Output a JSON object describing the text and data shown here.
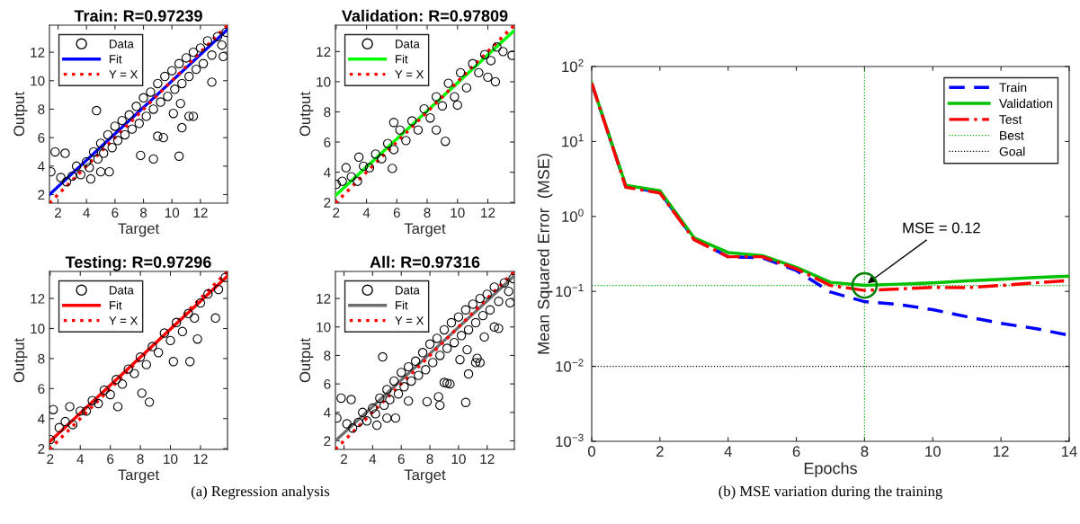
{
  "chart_data": [
    {
      "type": "scatter",
      "title": "Train: R=0.97239",
      "xlabel": "Target",
      "ylabel": "Output",
      "xlim": [
        1.4,
        13.9
      ],
      "ylim": [
        1.4,
        13.9
      ],
      "xticks": [
        2,
        4,
        6,
        8,
        10,
        12
      ],
      "yticks": [
        2,
        4,
        6,
        8,
        10,
        12
      ],
      "legend": "top left",
      "series": [
        {
          "name": "Data",
          "type": "scatter",
          "marker": "circle",
          "color": "#000000",
          "x": [
            1.5,
            1.8,
            2.5,
            4.7,
            4.3,
            5.0,
            5.6,
            7.8,
            8.7,
            10.5,
            9.0,
            9.4,
            10.7,
            10.1,
            11.2,
            11.5,
            10.6,
            12.8,
            13.6,
            2.2,
            2.6,
            3.0,
            3.3,
            3.6,
            4.0,
            4.2,
            4.5,
            4.8,
            5.0,
            5.2,
            5.5,
            5.8,
            6.0,
            6.2,
            6.5,
            6.7,
            7.0,
            7.2,
            7.5,
            7.7,
            8.0,
            8.2,
            8.5,
            8.7,
            9.0,
            9.2,
            9.5,
            9.7,
            10.0,
            10.2,
            10.5,
            10.7,
            11.0,
            11.2,
            11.5,
            11.7,
            12.0,
            12.2,
            12.5,
            12.8,
            13.2,
            13.5,
            13.8
          ],
          "values": [
            3.6,
            5.0,
            4.9,
            7.9,
            3.1,
            3.6,
            3.6,
            4.75,
            4.5,
            4.7,
            6.1,
            6.0,
            6.7,
            7.7,
            7.5,
            7.5,
            8.4,
            9.9,
            11.7,
            3.2,
            2.9,
            3.3,
            4.0,
            3.4,
            4.3,
            3.9,
            5.0,
            4.5,
            5.6,
            4.9,
            6.2,
            5.3,
            6.8,
            5.8,
            7.2,
            6.2,
            7.6,
            6.6,
            8.2,
            7.0,
            8.8,
            7.5,
            9.2,
            8.0,
            9.8,
            8.5,
            10.3,
            8.9,
            10.7,
            9.4,
            11.2,
            9.8,
            11.6,
            10.3,
            12.0,
            10.8,
            12.3,
            11.2,
            12.8,
            11.8,
            13.1,
            12.5,
            13.4
          ]
        },
        {
          "name": "Fit",
          "type": "line",
          "color": "#0000ff",
          "x": [
            1.4,
            13.9
          ],
          "values": [
            2.0,
            13.6
          ]
        },
        {
          "name": "Y = X",
          "type": "line",
          "line_style": "dotted",
          "color": "#ff0000",
          "x": [
            1.4,
            13.9
          ],
          "values": [
            1.4,
            13.9
          ]
        }
      ]
    },
    {
      "type": "scatter",
      "title": "Validation: R=0.97809",
      "xlabel": "Target",
      "ylabel": "Output",
      "xlim": [
        1.95,
        13.75
      ],
      "ylim": [
        1.95,
        13.75
      ],
      "xticks": [
        2,
        4,
        6,
        8,
        10,
        12
      ],
      "yticks": [
        2,
        4,
        6,
        8,
        10,
        12
      ],
      "legend": "top left",
      "series": [
        {
          "name": "Data",
          "type": "scatter",
          "marker": "circle",
          "color": "#000000",
          "x": [
            9.2,
            8.6,
            12.5,
            12.0,
            13.6,
            2.0,
            2.65,
            5.7,
            5.8,
            3.5,
            10.0,
            2.4,
            3.0,
            3.4,
            3.8,
            4.2,
            4.6,
            5.0,
            5.4,
            5.8,
            6.2,
            6.6,
            7.0,
            7.4,
            7.8,
            8.2,
            8.6,
            9.0,
            9.4,
            9.8,
            10.2,
            10.6,
            11.0,
            11.4,
            11.8,
            12.2,
            12.6,
            13.0
          ],
          "values": [
            6.05,
            6.8,
            10.0,
            10.3,
            11.75,
            3.2,
            4.3,
            4.25,
            7.3,
            5.0,
            8.45,
            3.4,
            3.7,
            3.4,
            4.4,
            4.3,
            5.2,
            4.9,
            5.9,
            5.5,
            6.8,
            6.1,
            7.4,
            6.8,
            8.2,
            7.6,
            9.0,
            8.4,
            9.9,
            9.0,
            10.6,
            9.6,
            11.2,
            10.6,
            11.8,
            11.4,
            12.3,
            12.0
          ]
        },
        {
          "name": "Fit",
          "type": "line",
          "color": "#00ff00",
          "x": [
            1.95,
            13.75
          ],
          "values": [
            2.45,
            13.4
          ]
        },
        {
          "name": "Y = X",
          "type": "line",
          "line_style": "dotted",
          "color": "#ff0000",
          "x": [
            1.95,
            13.75
          ],
          "values": [
            1.95,
            13.75
          ]
        }
      ]
    },
    {
      "type": "scatter",
      "title": "Testing: R=0.97296",
      "xlabel": "Target",
      "ylabel": "Output",
      "xlim": [
        1.95,
        13.8
      ],
      "ylim": [
        1.95,
        13.8
      ],
      "xticks": [
        2,
        4,
        6,
        8,
        10,
        12
      ],
      "yticks": [
        2,
        4,
        6,
        8,
        10,
        12
      ],
      "legend": "top left",
      "series": [
        {
          "name": "Data",
          "type": "scatter",
          "marker": "circle",
          "color": "#000000",
          "x": [
            8.6,
            8.1,
            6.5,
            11.3,
            10.2,
            11.8,
            13.0,
            13.65,
            2.2,
            2.0,
            3.3,
            2.6,
            3.0,
            3.5,
            4.0,
            4.4,
            4.8,
            5.2,
            5.6,
            6.0,
            6.4,
            6.8,
            7.2,
            7.6,
            8.0,
            8.4,
            8.8,
            9.2,
            9.6,
            10.0,
            10.4,
            10.8,
            11.2,
            11.6,
            12.0,
            12.5,
            13.2
          ],
          "values": [
            5.1,
            5.7,
            4.8,
            7.8,
            7.8,
            9.3,
            10.7,
            13.4,
            4.6,
            2.6,
            4.8,
            3.4,
            3.8,
            3.6,
            4.5,
            4.5,
            5.2,
            5.0,
            5.9,
            5.6,
            6.6,
            6.3,
            7.3,
            7.0,
            8.1,
            7.6,
            8.8,
            8.4,
            9.7,
            9.2,
            10.4,
            9.8,
            11.0,
            10.7,
            11.7,
            12.3,
            12.6
          ]
        },
        {
          "name": "Fit",
          "type": "line",
          "color": "#ff0000",
          "x": [
            1.95,
            13.8
          ],
          "values": [
            2.45,
            13.5
          ]
        },
        {
          "name": "Y = X",
          "type": "line",
          "line_style": "dotted",
          "color": "#ff0000",
          "x": [
            1.95,
            13.8
          ],
          "values": [
            1.95,
            13.8
          ]
        }
      ]
    },
    {
      "type": "scatter",
      "title": "All: R=0.97316",
      "xlabel": "Target",
      "ylabel": "Output",
      "xlim": [
        1.4,
        13.9
      ],
      "ylim": [
        1.4,
        13.9
      ],
      "xticks": [
        2,
        4,
        6,
        8,
        10,
        12
      ],
      "yticks": [
        2,
        4,
        6,
        8,
        10,
        12
      ],
      "legend": "top left",
      "annotations": [
        "(a) Regression analysis"
      ],
      "series": [
        {
          "name": "Data",
          "type": "scatter",
          "marker": "circle",
          "color": "#000000",
          "x": [
            1.5,
            1.8,
            2.5,
            4.7,
            4.3,
            5.0,
            5.6,
            7.8,
            8.7,
            10.5,
            9.0,
            9.4,
            10.7,
            10.1,
            11.2,
            11.5,
            10.6,
            12.8,
            13.6,
            9.2,
            12.5,
            8.6,
            6.5,
            11.3,
            11.8,
            2.2,
            2.6,
            3.0,
            3.3,
            3.6,
            4.0,
            4.2,
            4.5,
            4.8,
            5.0,
            5.2,
            5.5,
            5.8,
            6.0,
            6.2,
            6.5,
            6.7,
            7.0,
            7.2,
            7.5,
            7.7,
            8.0,
            8.2,
            8.5,
            8.7,
            9.0,
            9.2,
            9.5,
            9.7,
            10.0,
            10.2,
            10.5,
            10.7,
            11.0,
            11.2,
            11.5,
            11.7,
            12.0,
            12.2,
            12.5,
            12.8,
            13.2,
            13.5,
            13.8
          ],
          "values": [
            3.6,
            5.0,
            4.9,
            7.9,
            3.1,
            3.6,
            3.6,
            4.75,
            4.5,
            4.7,
            6.1,
            6.0,
            6.7,
            7.7,
            7.5,
            7.5,
            8.4,
            9.9,
            11.7,
            6.05,
            10.0,
            5.1,
            4.8,
            7.8,
            9.3,
            3.2,
            2.9,
            3.3,
            4.0,
            3.4,
            4.3,
            3.9,
            5.0,
            4.5,
            5.6,
            4.9,
            6.2,
            5.3,
            6.8,
            5.8,
            7.2,
            6.2,
            7.6,
            6.6,
            8.2,
            7.0,
            8.8,
            7.5,
            9.2,
            8.0,
            9.8,
            8.5,
            10.3,
            8.9,
            10.7,
            9.4,
            11.2,
            9.8,
            11.6,
            10.3,
            12.0,
            10.8,
            12.3,
            11.2,
            12.8,
            11.8,
            13.1,
            12.5,
            13.4
          ]
        },
        {
          "name": "Fit",
          "type": "line",
          "color": "#6e6e6e",
          "x": [
            1.4,
            13.9
          ],
          "values": [
            2.0,
            13.6
          ]
        },
        {
          "name": "Y = X",
          "type": "line",
          "line_style": "dotted",
          "color": "#ff0000",
          "x": [
            1.4,
            13.9
          ],
          "values": [
            1.4,
            13.9
          ]
        }
      ]
    },
    {
      "type": "line",
      "xlabel": "Epochs",
      "ylabel": "Mean Squared Error  (MSE)",
      "log": "y",
      "xlim": [
        0,
        14
      ],
      "ylim": [
        0.001,
        100
      ],
      "xticks": [
        0,
        2,
        4,
        6,
        8,
        10,
        12,
        14
      ],
      "yticks": [
        {
          "value": 0.001,
          "label": "10$^{−3}$"
        },
        {
          "value": 0.01,
          "label": "10$^{−2}$"
        },
        {
          "value": 0.1,
          "label": "10$^{−1}$"
        },
        {
          "value": 1,
          "label": "10$^{0}$"
        },
        {
          "value": 10,
          "label": "10$^{1}$"
        },
        {
          "value": 100,
          "label": "10$^{2}$"
        }
      ],
      "x": [
        0,
        1,
        2,
        3,
        4,
        5,
        6,
        7,
        8,
        9,
        10,
        11,
        12,
        13,
        14
      ],
      "legend": "top right",
      "annotations": [
        {
          "text": "MSE = 0.12",
          "x": 8,
          "y": 0.12
        },
        "(b) MSE variation during the training"
      ],
      "ref_lines": [
        {
          "axis": "y",
          "value": 0.12,
          "label": "Best",
          "color": "#00aa00",
          "line_style": "dotted"
        },
        {
          "axis": "x",
          "value": 8,
          "color": "#00aa00",
          "line_style": "dotted"
        },
        {
          "axis": "y",
          "value": 0.01,
          "label": "Goal",
          "color": "#000000",
          "line_style": "dotted"
        }
      ],
      "series": [
        {
          "name": "Train",
          "line_style": "dashed",
          "color": "#0000ff",
          "values": [
            60,
            2.5,
            2.1,
            0.5,
            0.29,
            0.28,
            0.19,
            0.098,
            0.073,
            0.067,
            0.057,
            0.046,
            0.0375,
            0.032,
            0.026
          ]
        },
        {
          "name": "Validation",
          "line_style": "solid",
          "color": "#00c000",
          "values": [
            60,
            2.6,
            2.2,
            0.52,
            0.33,
            0.3,
            0.21,
            0.132,
            0.12,
            0.125,
            0.13,
            0.138,
            0.145,
            0.153,
            0.16
          ]
        },
        {
          "name": "Test",
          "line_style": "dashdot",
          "color": "#ff0000",
          "values": [
            60,
            2.45,
            2.05,
            0.49,
            0.29,
            0.29,
            0.2,
            0.12,
            0.103,
            0.108,
            0.113,
            0.112,
            0.12,
            0.13,
            0.14
          ]
        },
        {
          "type": "scatter",
          "marker": "circle",
          "color": "#008000",
          "x": [
            8
          ],
          "values": [
            0.12
          ]
        }
      ]
    }
  ]
}
